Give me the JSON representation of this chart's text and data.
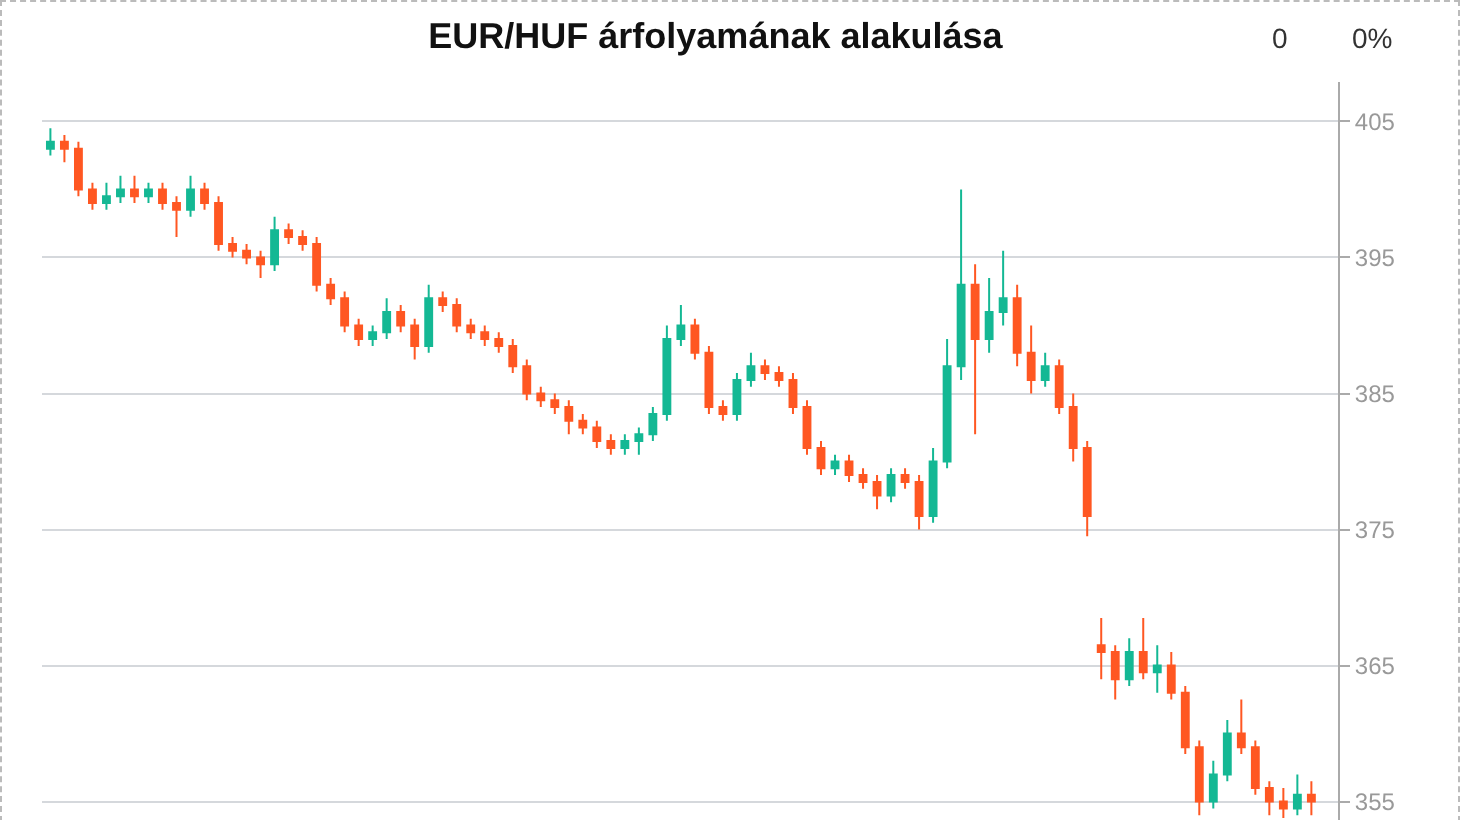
{
  "chart_data": {
    "type": "candlestick",
    "title": "EUR/HUF árfolyamának alakulása",
    "annotations": [
      "0",
      "0%"
    ],
    "categories": [
      null,
      null,
      null,
      null,
      null,
      null,
      null,
      null,
      null,
      null,
      null,
      null,
      null,
      null,
      null,
      null,
      null,
      null,
      null,
      null,
      null,
      null,
      null,
      null,
      null,
      null,
      null,
      null,
      null,
      null,
      null,
      null,
      null,
      null,
      null,
      null,
      null,
      null,
      null,
      null,
      null,
      null,
      null,
      null,
      null,
      null,
      null,
      null,
      null,
      null,
      null,
      null,
      null,
      null,
      null,
      null,
      null,
      null,
      null,
      null,
      null,
      null,
      null,
      null,
      null,
      null,
      null,
      null,
      null,
      null,
      null,
      null,
      null,
      null,
      null,
      null,
      null,
      null,
      null,
      null,
      null,
      null,
      null,
      null,
      null,
      null,
      null,
      null,
      null,
      null,
      null
    ],
    "ohlc": [
      [
        403,
        404.5,
        402.5,
        403.5
      ],
      [
        403.5,
        404,
        402,
        403
      ],
      [
        403,
        403.5,
        399.5,
        400
      ],
      [
        400,
        400.5,
        398.5,
        399
      ],
      [
        399,
        400.5,
        398.5,
        399.5
      ],
      [
        399.5,
        401,
        399,
        400
      ],
      [
        400,
        401,
        399,
        399.5
      ],
      [
        399.5,
        400.5,
        399,
        400
      ],
      [
        400,
        400.5,
        398.5,
        399
      ],
      [
        399,
        399.5,
        396.5,
        398.5
      ],
      [
        398.5,
        401,
        398,
        400
      ],
      [
        400,
        400.5,
        398.5,
        399
      ],
      [
        399,
        399.5,
        395.5,
        396
      ],
      [
        396,
        396.5,
        395,
        395.5
      ],
      [
        395.5,
        396,
        394.5,
        395
      ],
      [
        395,
        395.5,
        393.5,
        394.5
      ],
      [
        394.5,
        398,
        394,
        397
      ],
      [
        397,
        397.5,
        396,
        396.5
      ],
      [
        396.5,
        397,
        395.5,
        396
      ],
      [
        396,
        396.5,
        392.5,
        393
      ],
      [
        393,
        393.5,
        391.5,
        392
      ],
      [
        392,
        392.5,
        389.5,
        390
      ],
      [
        390,
        390.5,
        388.5,
        389
      ],
      [
        389,
        390,
        388.5,
        389.5
      ],
      [
        389.5,
        392,
        389,
        391
      ],
      [
        391,
        391.5,
        389.5,
        390
      ],
      [
        390,
        390.5,
        387.5,
        388.5
      ],
      [
        388.5,
        393,
        388,
        392
      ],
      [
        392,
        392.5,
        391,
        391.5
      ],
      [
        391.5,
        392,
        389.5,
        390
      ],
      [
        390,
        390.5,
        389,
        389.5
      ],
      [
        389.5,
        390,
        388.5,
        389
      ],
      [
        389,
        389.5,
        388,
        388.5
      ],
      [
        388.5,
        389,
        386.5,
        387
      ],
      [
        387,
        387.5,
        384.5,
        385
      ],
      [
        385,
        385.5,
        384,
        384.5
      ],
      [
        384.5,
        385,
        383.5,
        384
      ],
      [
        384,
        384.5,
        382,
        383
      ],
      [
        383,
        383.5,
        382,
        382.5
      ],
      [
        382.5,
        383,
        381,
        381.5
      ],
      [
        381.5,
        382,
        380.5,
        381
      ],
      [
        381,
        382,
        380.5,
        381.5
      ],
      [
        381.5,
        382.5,
        380.5,
        382
      ],
      [
        382,
        384,
        381.5,
        383.5
      ],
      [
        383.5,
        390,
        383,
        389
      ],
      [
        389,
        391.5,
        388.5,
        390
      ],
      [
        390,
        390.5,
        387.5,
        388
      ],
      [
        388,
        388.5,
        383.5,
        384
      ],
      [
        384,
        384.5,
        383,
        383.5
      ],
      [
        383.5,
        386.5,
        383,
        386
      ],
      [
        386,
        388,
        385.5,
        387
      ],
      [
        387,
        387.5,
        386,
        386.5
      ],
      [
        386.5,
        387,
        385.5,
        386
      ],
      [
        386,
        386.5,
        383.5,
        384
      ],
      [
        384,
        384.5,
        380.5,
        381
      ],
      [
        381,
        381.5,
        379,
        379.5
      ],
      [
        379.5,
        380.5,
        379,
        380
      ],
      [
        380,
        380.5,
        378.5,
        379
      ],
      [
        379,
        379.5,
        378,
        378.5
      ],
      [
        378.5,
        379,
        376.5,
        377.5
      ],
      [
        377.5,
        379.5,
        377,
        379
      ],
      [
        379,
        379.5,
        378,
        378.5
      ],
      [
        378.5,
        379,
        375,
        376
      ],
      [
        376,
        381,
        375.5,
        380
      ],
      [
        380,
        389,
        379.5,
        387
      ],
      [
        387,
        400,
        386,
        393
      ],
      [
        393,
        394.5,
        382,
        389
      ],
      [
        389,
        393.5,
        388,
        391
      ],
      [
        391,
        395.5,
        390,
        392
      ],
      [
        392,
        393,
        387,
        388
      ],
      [
        388,
        390,
        385,
        386
      ],
      [
        386,
        388,
        385.5,
        387
      ],
      [
        387,
        387.5,
        383.5,
        384
      ],
      [
        384,
        385,
        380,
        381
      ],
      [
        381,
        381.5,
        374.5,
        376
      ],
      [
        366.5,
        368.5,
        364,
        366
      ],
      [
        366,
        366.5,
        362.5,
        364
      ],
      [
        364,
        367,
        363.5,
        366
      ],
      [
        366,
        368.5,
        364,
        364.5
      ],
      [
        364.5,
        366.5,
        363,
        365
      ],
      [
        365,
        366,
        362.5,
        363
      ],
      [
        363,
        363.5,
        358.5,
        359
      ],
      [
        359,
        359.5,
        354,
        355
      ],
      [
        355,
        358,
        354.5,
        357
      ],
      [
        357,
        361,
        356.5,
        360
      ],
      [
        360,
        362.5,
        358.5,
        359
      ],
      [
        359,
        359.5,
        355.5,
        356
      ],
      [
        356,
        356.5,
        354,
        355
      ],
      [
        355,
        356,
        353.8,
        354.5
      ],
      [
        354.5,
        357,
        354,
        355.5
      ],
      [
        355.5,
        356.5,
        354,
        355
      ]
    ],
    "colors": [
      "#14b894",
      "#ff5722",
      "#ff5722",
      "#ff5722",
      "#14b894",
      "#14b894",
      "#ff5722",
      "#14b894",
      "#ff5722",
      "#ff5722",
      "#14b894",
      "#ff5722",
      "#ff5722",
      "#ff5722",
      "#ff5722",
      "#ff5722",
      "#14b894",
      "#ff5722",
      "#ff5722",
      "#ff5722",
      "#ff5722",
      "#ff5722",
      "#ff5722",
      "#14b894",
      "#14b894",
      "#ff5722",
      "#ff5722",
      "#14b894",
      "#ff5722",
      "#ff5722",
      "#ff5722",
      "#ff5722",
      "#ff5722",
      "#ff5722",
      "#ff5722",
      "#ff5722",
      "#ff5722",
      "#ff5722",
      "#ff5722",
      "#ff5722",
      "#ff5722",
      "#14b894",
      "#14b894",
      "#14b894",
      "#14b894",
      "#14b894",
      "#ff5722",
      "#ff5722",
      "#ff5722",
      "#14b894",
      "#14b894",
      "#ff5722",
      "#ff5722",
      "#ff5722",
      "#ff5722",
      "#ff5722",
      "#14b894",
      "#ff5722",
      "#ff5722",
      "#ff5722",
      "#14b894",
      "#ff5722",
      "#ff5722",
      "#14b894",
      "#14b894",
      "#14b894",
      "#ff5722",
      "#14b894",
      "#14b894",
      "#ff5722",
      "#ff5722",
      "#14b894",
      "#ff5722",
      "#ff5722",
      "#ff5722",
      "#ff5722",
      "#ff5722",
      "#14b894",
      "#ff5722",
      "#14b894",
      "#ff5722",
      "#ff5722",
      "#ff5722",
      "#14b894",
      "#14b894",
      "#ff5722",
      "#ff5722",
      "#ff5722",
      "#ff5722",
      "#14b894",
      "#ff5722"
    ],
    "ylim": [
      353.5,
      407.9
    ],
    "yticks": [
      355,
      365,
      375,
      385,
      395,
      405
    ],
    "grid": "y"
  }
}
